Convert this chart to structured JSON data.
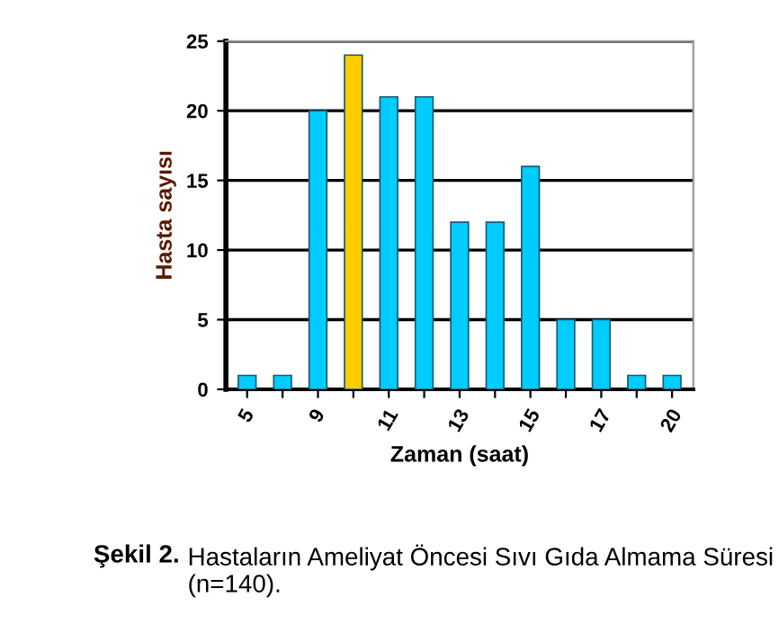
{
  "chart_data": {
    "type": "bar",
    "xlabel": "Zaman (saat)",
    "ylabel": "Hasta sayısı",
    "categories": [
      "5",
      null,
      "9",
      null,
      "11",
      null,
      "13",
      null,
      "15",
      null,
      "17",
      null,
      "20"
    ],
    "values": [
      1,
      1,
      20,
      24,
      21,
      21,
      12,
      12,
      16,
      5,
      5,
      1,
      1
    ],
    "colors": [
      "#00ccff",
      "#00ccff",
      "#00ccff",
      "#ffcc00",
      "#00ccff",
      "#00ccff",
      "#00ccff",
      "#00ccff",
      "#00ccff",
      "#00ccff",
      "#00ccff",
      "#00ccff",
      "#00ccff"
    ],
    "ylim": [
      0,
      25
    ],
    "yticks": [
      0,
      5,
      10,
      15,
      20,
      25
    ],
    "grid": "y",
    "annotations": [
      "Şekil 2.",
      "Hastaların Ameliyat Öncesi Sıvı Gıda Almama Süresi (n=140)."
    ]
  }
}
